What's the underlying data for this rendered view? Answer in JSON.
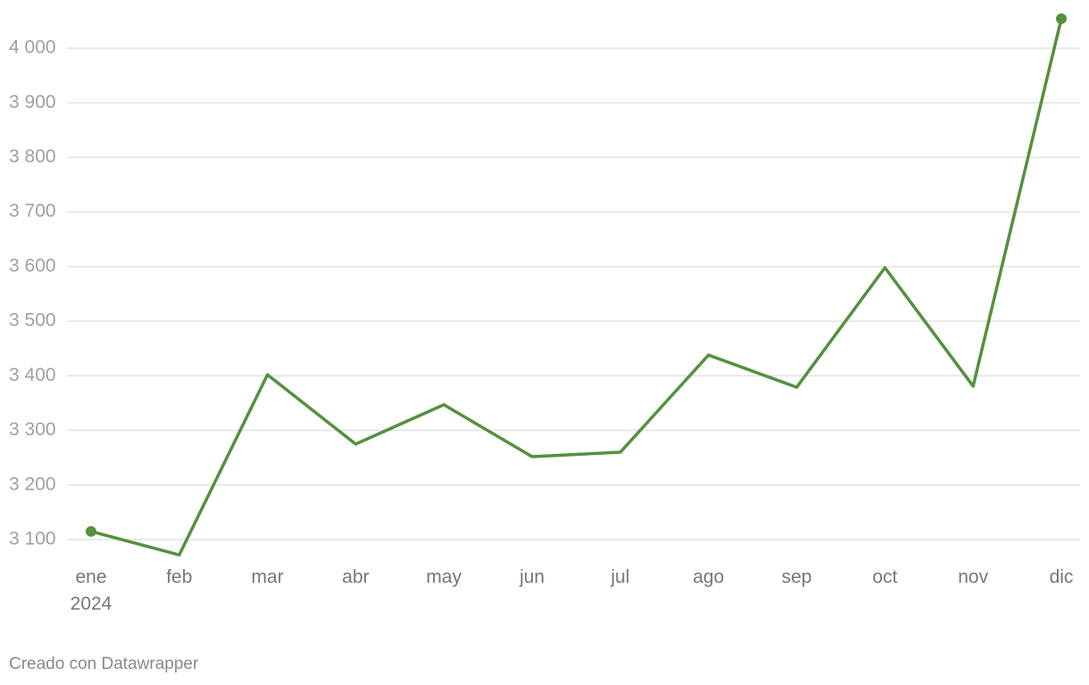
{
  "chart_data": {
    "type": "line",
    "categories": [
      "ene",
      "feb",
      "mar",
      "abr",
      "may",
      "jun",
      "jul",
      "ago",
      "sep",
      "oct",
      "nov",
      "dic"
    ],
    "category_sublabel": "2024",
    "series": [
      {
        "color": "#55903f",
        "values": [
          3115,
          3072,
          3402,
          3275,
          3347,
          3252,
          3260,
          3438,
          3379,
          3598,
          3381,
          4054
        ]
      }
    ],
    "ylim": [
      3100,
      4000
    ],
    "yticks": [
      {
        "value": 3100,
        "label": "3 100"
      },
      {
        "value": 3200,
        "label": "3 200"
      },
      {
        "value": 3300,
        "label": "3 300"
      },
      {
        "value": 3400,
        "label": "3 400"
      },
      {
        "value": 3500,
        "label": "3 500"
      },
      {
        "value": 3600,
        "label": "3 600"
      },
      {
        "value": 3700,
        "label": "3 700"
      },
      {
        "value": 3800,
        "label": "3 800"
      },
      {
        "value": 3900,
        "label": "3 900"
      },
      {
        "value": 4000,
        "label": "4 000"
      }
    ],
    "grid": true,
    "end_markers": true,
    "footer": "Creado con Datawrapper"
  }
}
